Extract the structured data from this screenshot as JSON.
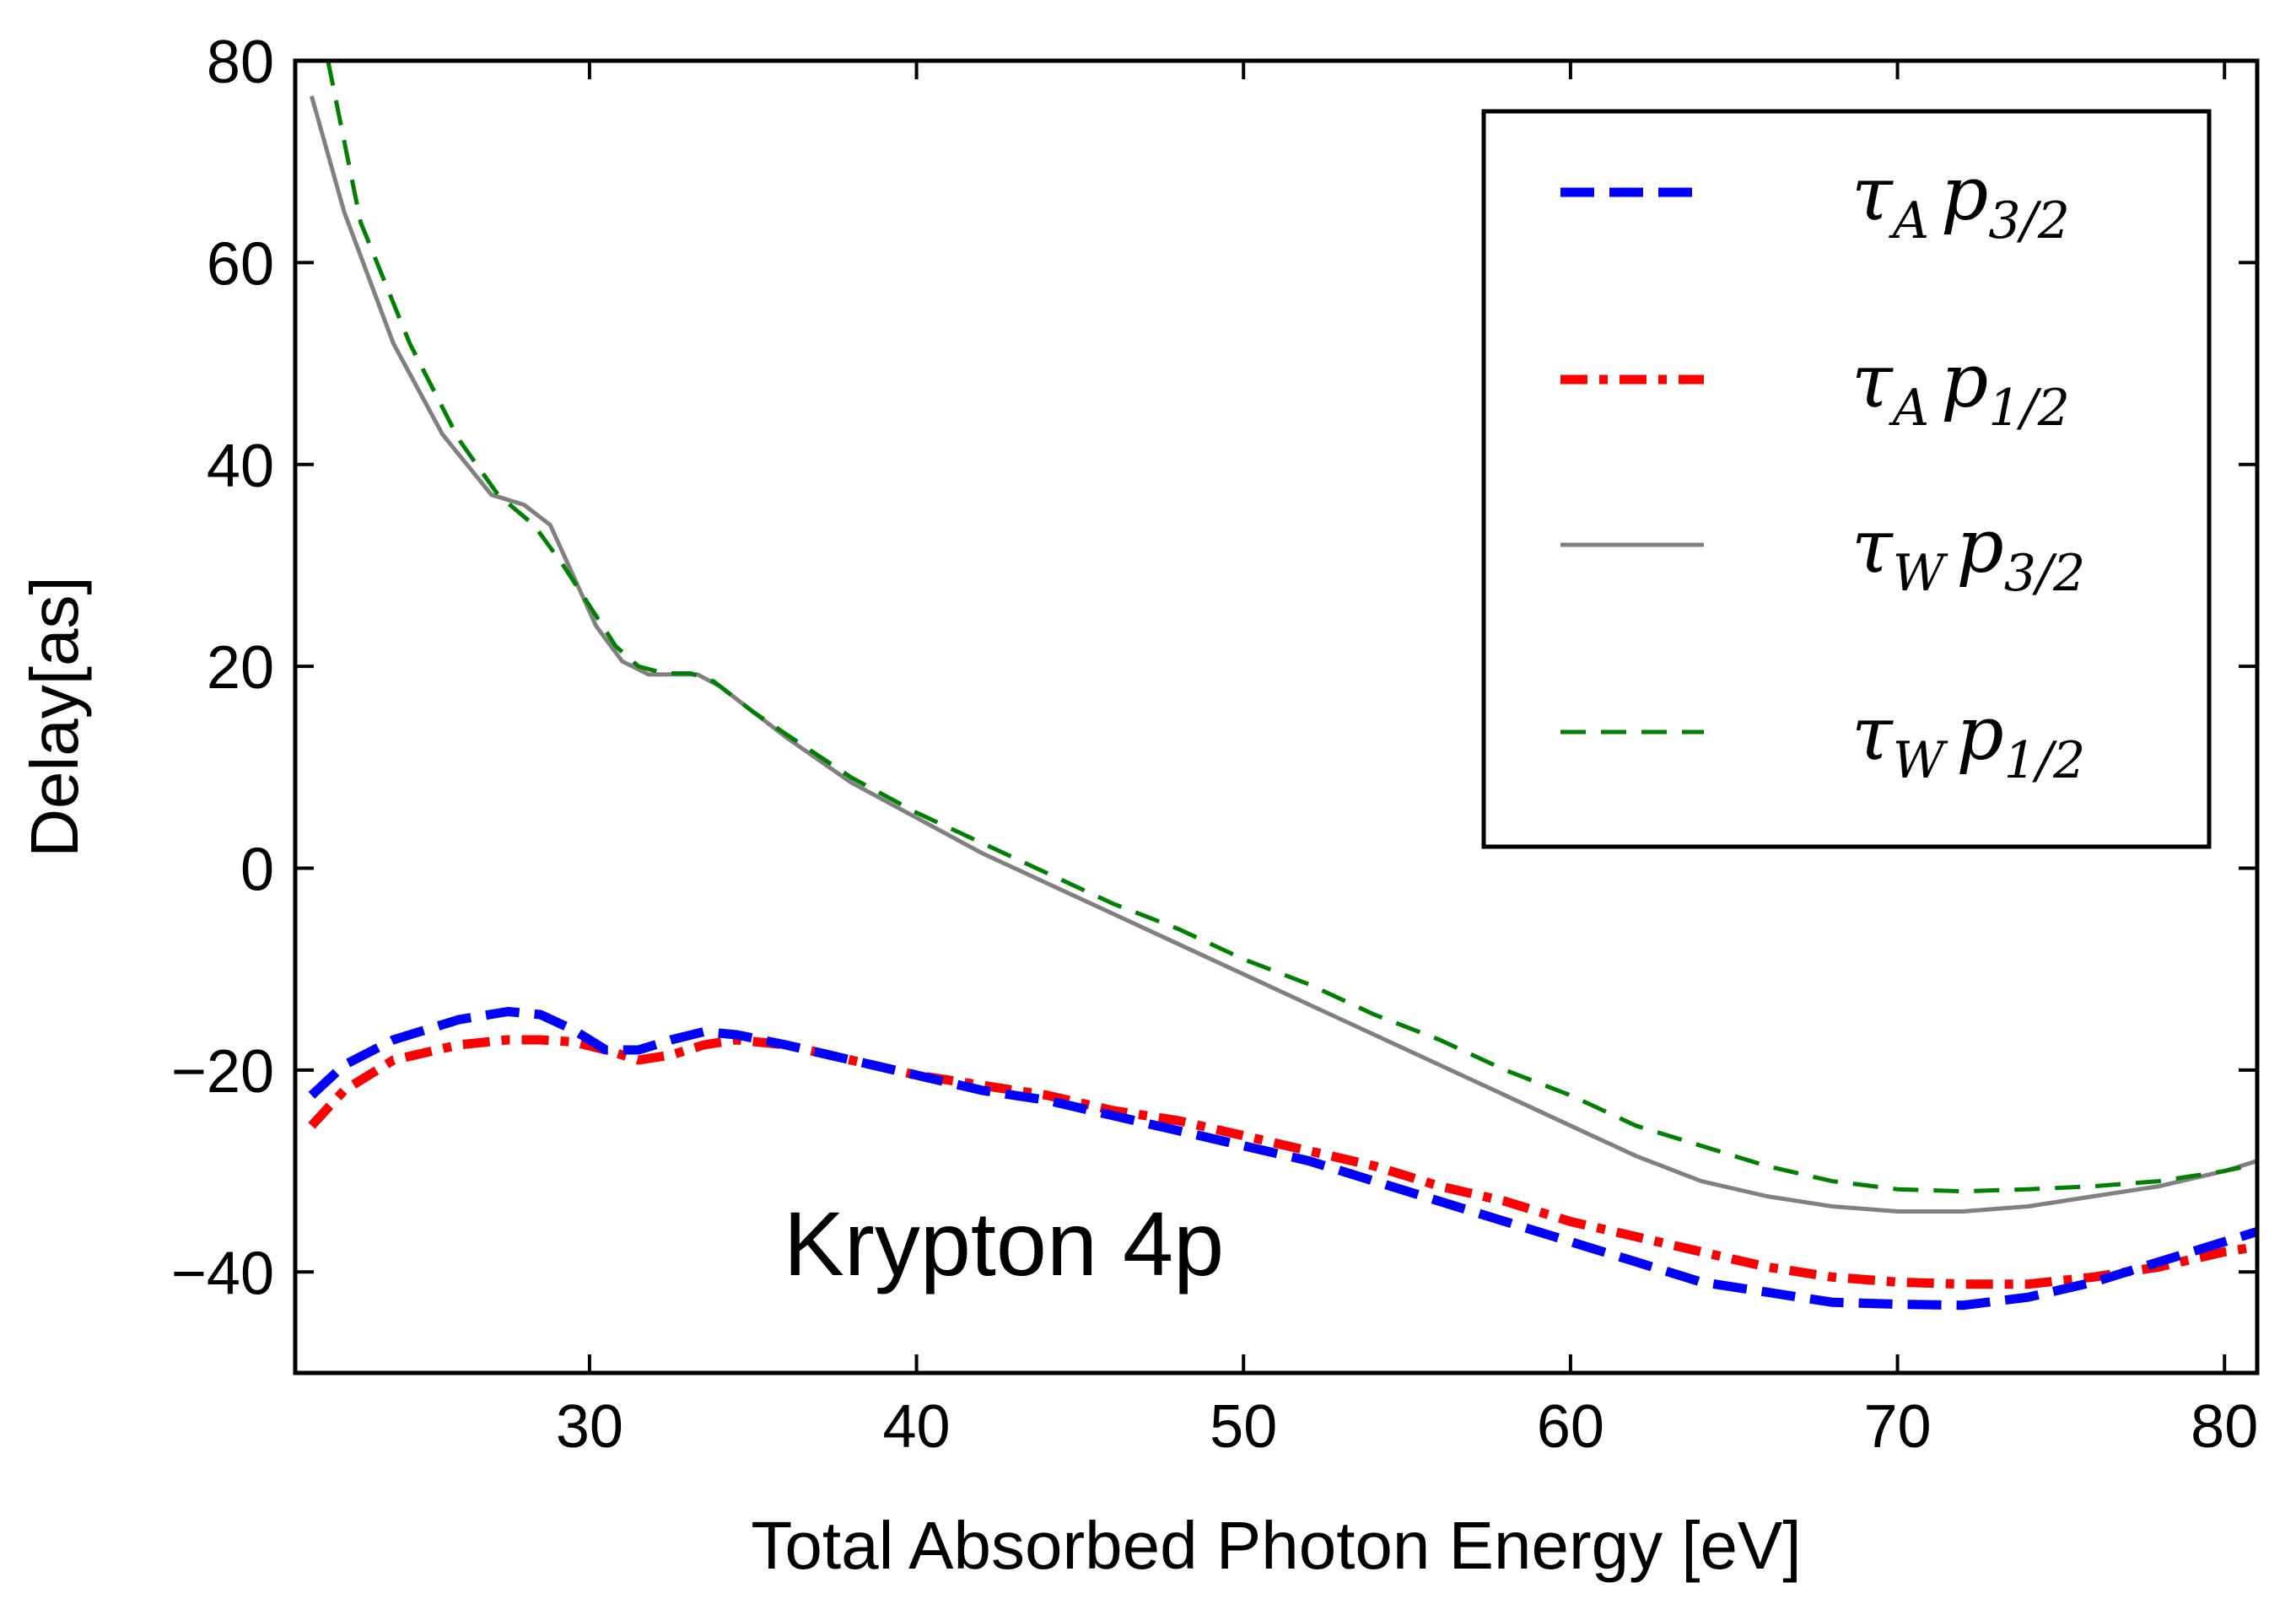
{
  "chart_data": {
    "type": "line",
    "title": "",
    "xlabel": "Total Absorbed Photon Energy [eV]",
    "ylabel": "Delay[as]",
    "xlim": [
      21,
      81
    ],
    "ylim": [
      -50,
      80
    ],
    "xticks": [
      30,
      40,
      50,
      60,
      70,
      80
    ],
    "yticks": [
      -40,
      -20,
      0,
      20,
      40,
      60,
      80
    ],
    "xtick_labels": [
      "30",
      "40",
      "50",
      "60",
      "70",
      "80"
    ],
    "ytick_labels": [
      "−40",
      "−20",
      "0",
      "20",
      "40",
      "60",
      "80"
    ],
    "grid": false,
    "legend_position": "top-right",
    "annotation": "Krypton 4p",
    "series": [
      {
        "name": "τ_A p_3/2",
        "symbol": "τ",
        "sym_sub": "A",
        "orbital": "p",
        "orb_sub": "3/2",
        "color": "#0000ff",
        "style": "dashed-thick",
        "x": [
          21.5,
          22.5,
          24,
          26,
          27.5,
          28.5,
          29.5,
          30.5,
          31.5,
          32.5,
          33.5,
          34.5,
          36,
          38,
          40,
          42,
          44,
          46,
          48,
          50,
          52,
          54,
          56,
          58,
          60,
          62,
          64,
          66,
          68,
          70,
          72,
          74,
          76,
          78,
          80,
          81
        ],
        "y": [
          -22.5,
          -19.5,
          -17,
          -15,
          -14.2,
          -14.5,
          -16,
          -18,
          -18,
          -17,
          -16.2,
          -16.5,
          -17.5,
          -19,
          -20.5,
          -22,
          -23,
          -24.5,
          -26,
          -27.5,
          -29,
          -31,
          -33,
          -35,
          -37,
          -39,
          -41,
          -42,
          -43,
          -43.2,
          -43.3,
          -42.5,
          -41,
          -39,
          -37,
          -36
        ]
      },
      {
        "name": "τ_A p_1/2",
        "symbol": "τ",
        "sym_sub": "A",
        "orbital": "p",
        "orb_sub": "1/2",
        "color": "#ff0000",
        "style": "dashdot-thick",
        "x": [
          21.5,
          22.5,
          24,
          26,
          27.5,
          28.5,
          29.5,
          30.5,
          31.5,
          32.5,
          33.5,
          34.5,
          36,
          38,
          40,
          42,
          44,
          46,
          48,
          50,
          52,
          54,
          56,
          58,
          60,
          62,
          64,
          66,
          68,
          70,
          72,
          74,
          76,
          78,
          80,
          81
        ],
        "y": [
          -25.5,
          -22,
          -19,
          -17.5,
          -17,
          -17,
          -17.2,
          -18,
          -19,
          -18.5,
          -17.5,
          -17,
          -17.5,
          -19,
          -20.5,
          -21.5,
          -22.5,
          -24,
          -25,
          -26.5,
          -28,
          -29.5,
          -31.5,
          -33,
          -35,
          -36.5,
          -38,
          -39.5,
          -40.5,
          -41,
          -41.2,
          -41.2,
          -40.5,
          -39.5,
          -38,
          -37.5
        ]
      },
      {
        "name": "τ_W p_3/2",
        "symbol": "τ",
        "sym_sub": "W",
        "orbital": "p",
        "orb_sub": "3/2",
        "color": "#808080",
        "style": "solid",
        "x": [
          21.5,
          22.5,
          24,
          25.5,
          27,
          28,
          28.8,
          29.5,
          30.2,
          31,
          31.8,
          32.5,
          33.3,
          34,
          35,
          36,
          38,
          40,
          42,
          44,
          46,
          48,
          50,
          52,
          54,
          56,
          58,
          60,
          62,
          64,
          66,
          68,
          70,
          72,
          74,
          76,
          78,
          80,
          81
        ],
        "y": [
          76.5,
          65,
          52,
          43,
          37,
          36,
          34,
          29,
          24,
          20.5,
          19.2,
          19.2,
          19.2,
          18,
          15.5,
          13,
          8.5,
          5,
          1.5,
          -1.5,
          -4.5,
          -7.5,
          -10.5,
          -13.5,
          -16.5,
          -19.5,
          -22.5,
          -25.5,
          -28.5,
          -31,
          -32.5,
          -33.5,
          -34,
          -34,
          -33.5,
          -32.5,
          -31.5,
          -30,
          -29
        ]
      },
      {
        "name": "τ_W p_1/2",
        "symbol": "τ",
        "sym_sub": "W",
        "orbital": "p",
        "orb_sub": "1/2",
        "color": "#008000",
        "style": "dashed",
        "x": [
          22,
          23,
          24.5,
          26,
          27.2,
          28.3,
          29.2,
          30,
          30.8,
          31.5,
          32.3,
          33.1,
          33.8,
          35,
          36,
          38,
          40,
          42,
          44,
          46,
          48,
          50,
          52,
          54,
          56,
          58,
          60,
          62,
          64,
          66,
          68,
          70,
          72,
          74,
          76,
          78,
          80,
          81
        ],
        "y": [
          80,
          64,
          52,
          42.5,
          37,
          34,
          30,
          26,
          22,
          20,
          19.3,
          19.3,
          18.5,
          15.5,
          13.3,
          9,
          5.5,
          2.5,
          -0.5,
          -3.5,
          -6,
          -9,
          -11.5,
          -14.5,
          -17,
          -20,
          -22.5,
          -25.5,
          -27.5,
          -29.5,
          -31,
          -31.8,
          -32,
          -31.8,
          -31.5,
          -31,
          -30,
          -29.3
        ]
      }
    ]
  }
}
